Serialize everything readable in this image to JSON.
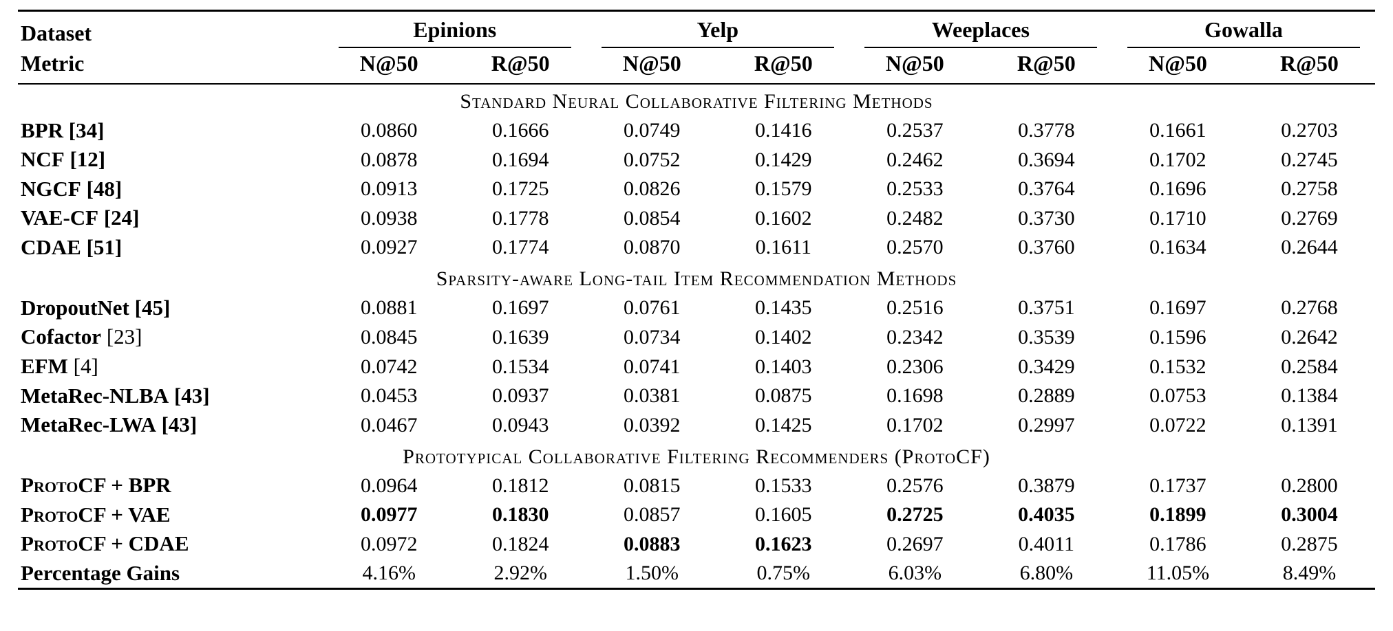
{
  "page": {
    "background_color": "#ffffff",
    "text_color": "#000000"
  },
  "table": {
    "corner": {
      "row1": "Dataset",
      "row2": "Metric"
    },
    "groups": [
      {
        "label": "Epinions",
        "metrics": [
          "N@50",
          "R@50"
        ]
      },
      {
        "label": "Yelp",
        "metrics": [
          "N@50",
          "R@50"
        ]
      },
      {
        "label": "Weeplaces",
        "metrics": [
          "N@50",
          "R@50"
        ]
      },
      {
        "label": "Gowalla",
        "metrics": [
          "N@50",
          "R@50"
        ]
      }
    ],
    "sections": [
      {
        "title": "Standard Neural Collaborative Filtering Methods",
        "rows": [
          {
            "name": "BPR",
            "ref": "[34]",
            "ref_bold": true,
            "smallcaps": false,
            "values": [
              "0.0860",
              "0.1666",
              "0.0749",
              "0.1416",
              "0.2537",
              "0.3778",
              "0.1661",
              "0.2703"
            ],
            "bold_cols": []
          },
          {
            "name": "NCF",
            "ref": "[12]",
            "ref_bold": true,
            "smallcaps": false,
            "values": [
              "0.0878",
              "0.1694",
              "0.0752",
              "0.1429",
              "0.2462",
              "0.3694",
              "0.1702",
              "0.2745"
            ],
            "bold_cols": []
          },
          {
            "name": "NGCF",
            "ref": "[48]",
            "ref_bold": true,
            "smallcaps": false,
            "values": [
              "0.0913",
              "0.1725",
              "0.0826",
              "0.1579",
              "0.2533",
              "0.3764",
              "0.1696",
              "0.2758"
            ],
            "bold_cols": []
          },
          {
            "name": "VAE-CF",
            "ref": "[24]",
            "ref_bold": true,
            "smallcaps": false,
            "values": [
              "0.0938",
              "0.1778",
              "0.0854",
              "0.1602",
              "0.2482",
              "0.3730",
              "0.1710",
              "0.2769"
            ],
            "bold_cols": []
          },
          {
            "name": "CDAE",
            "ref": "[51]",
            "ref_bold": true,
            "smallcaps": false,
            "values": [
              "0.0927",
              "0.1774",
              "0.0870",
              "0.1611",
              "0.2570",
              "0.3760",
              "0.1634",
              "0.2644"
            ],
            "bold_cols": []
          }
        ]
      },
      {
        "title": "Sparsity-aware Long-tail Item Recommendation Methods",
        "rows": [
          {
            "name": "DropoutNet",
            "ref": "[45]",
            "ref_bold": true,
            "smallcaps": false,
            "values": [
              "0.0881",
              "0.1697",
              "0.0761",
              "0.1435",
              "0.2516",
              "0.3751",
              "0.1697",
              "0.2768"
            ],
            "bold_cols": []
          },
          {
            "name": "Cofactor",
            "ref": "[23]",
            "ref_bold": false,
            "smallcaps": false,
            "values": [
              "0.0845",
              "0.1639",
              "0.0734",
              "0.1402",
              "0.2342",
              "0.3539",
              "0.1596",
              "0.2642"
            ],
            "bold_cols": []
          },
          {
            "name": "EFM",
            "ref": "[4]",
            "ref_bold": false,
            "smallcaps": false,
            "values": [
              "0.0742",
              "0.1534",
              "0.0741",
              "0.1403",
              "0.2306",
              "0.3429",
              "0.1532",
              "0.2584"
            ],
            "bold_cols": []
          },
          {
            "name": "MetaRec-NLBA",
            "ref": "[43]",
            "ref_bold": true,
            "smallcaps": false,
            "values": [
              "0.0453",
              "0.0937",
              "0.0381",
              "0.0875",
              "0.1698",
              "0.2889",
              "0.0753",
              "0.1384"
            ],
            "bold_cols": []
          },
          {
            "name": "MetaRec-LWA",
            "ref": "[43]",
            "ref_bold": true,
            "smallcaps": false,
            "values": [
              "0.0467",
              "0.0943",
              "0.0392",
              "0.1425",
              "0.1702",
              "0.2997",
              "0.0722",
              "0.1391"
            ],
            "bold_cols": []
          }
        ]
      },
      {
        "title": "Prototypical Collaborative Filtering Recommenders (ProtoCF)",
        "rows": [
          {
            "name": "ProtoCF + BPR",
            "ref": "",
            "ref_bold": false,
            "smallcaps": true,
            "values": [
              "0.0964",
              "0.1812",
              "0.0815",
              "0.1533",
              "0.2576",
              "0.3879",
              "0.1737",
              "0.2800"
            ],
            "bold_cols": []
          },
          {
            "name": "ProtoCF + VAE",
            "ref": "",
            "ref_bold": false,
            "smallcaps": true,
            "values": [
              "0.0977",
              "0.1830",
              "0.0857",
              "0.1605",
              "0.2725",
              "0.4035",
              "0.1899",
              "0.3004"
            ],
            "bold_cols": [
              0,
              1,
              4,
              5,
              6,
              7
            ]
          },
          {
            "name": "ProtoCF + CDAE",
            "ref": "",
            "ref_bold": false,
            "smallcaps": true,
            "values": [
              "0.0972",
              "0.1824",
              "0.0883",
              "0.1623",
              "0.2697",
              "0.4011",
              "0.1786",
              "0.2875"
            ],
            "bold_cols": [
              2,
              3
            ]
          },
          {
            "name": "Percentage Gains",
            "ref": "",
            "ref_bold": false,
            "smallcaps": false,
            "values": [
              "4.16%",
              "2.92%",
              "1.50%",
              "0.75%",
              "6.03%",
              "6.80%",
              "11.05%",
              "8.49%"
            ],
            "bold_cols": []
          }
        ]
      }
    ]
  }
}
